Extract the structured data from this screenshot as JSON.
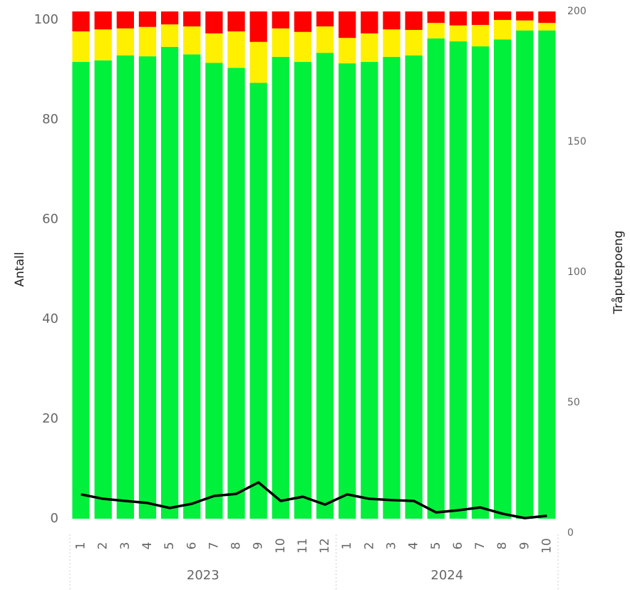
{
  "chart_data": {
    "type": "bar",
    "categories": [
      "1",
      "2",
      "3",
      "4",
      "5",
      "6",
      "7",
      "8",
      "9",
      "10",
      "11",
      "12",
      "1",
      "2",
      "3",
      "4",
      "5",
      "6",
      "7",
      "8",
      "9",
      "10"
    ],
    "groups": [
      {
        "label": "2023",
        "size": 12
      },
      {
        "label": "2024",
        "size": 10
      }
    ],
    "stacked": true,
    "series": [
      {
        "color": "#00f03c",
        "values": [
          91.6,
          91.9,
          92.9,
          92.7,
          94.6,
          93.1,
          91.4,
          90.4,
          87.4,
          92.6,
          91.6,
          93.4,
          91.3,
          91.6,
          92.6,
          92.9,
          96.3,
          95.7,
          94.7,
          96.1,
          97.9,
          97.9
        ]
      },
      {
        "color": "#fff000",
        "values": [
          6.1,
          6.2,
          5.4,
          5.9,
          4.5,
          5.6,
          5.9,
          7.3,
          8.2,
          5.7,
          6.0,
          5.3,
          5.1,
          5.7,
          5.5,
          5.1,
          3.1,
          3.2,
          4.3,
          3.9,
          2.0,
          1.5
        ]
      },
      {
        "color": "#ff0000",
        "values": [
          4.0,
          3.6,
          3.4,
          3.1,
          2.6,
          3.0,
          4.4,
          4.0,
          6.1,
          3.4,
          4.1,
          3.0,
          5.3,
          4.4,
          3.6,
          3.7,
          2.3,
          2.8,
          2.7,
          1.7,
          1.8,
          2.3
        ]
      },
      {
        "type": "line",
        "axis": "y2",
        "color": "#000000",
        "values": [
          14.8,
          13.1,
          12.3,
          11.5,
          9.6,
          11.2,
          14.2,
          15.0,
          19.4,
          12.3,
          13.9,
          10.9,
          14.8,
          13.1,
          12.6,
          12.3,
          7.9,
          8.7,
          9.8,
          7.4,
          5.7,
          6.6
        ]
      }
    ],
    "ylabel": "Antall",
    "y2label": "Tråputepoeng",
    "ylim": [
      -2.86,
      101.71
    ],
    "yticks": [
      0,
      20,
      40,
      60,
      80,
      100
    ],
    "y2lim": [
      0,
      200
    ],
    "y2ticks": [
      0,
      50,
      100,
      150,
      200
    ]
  }
}
